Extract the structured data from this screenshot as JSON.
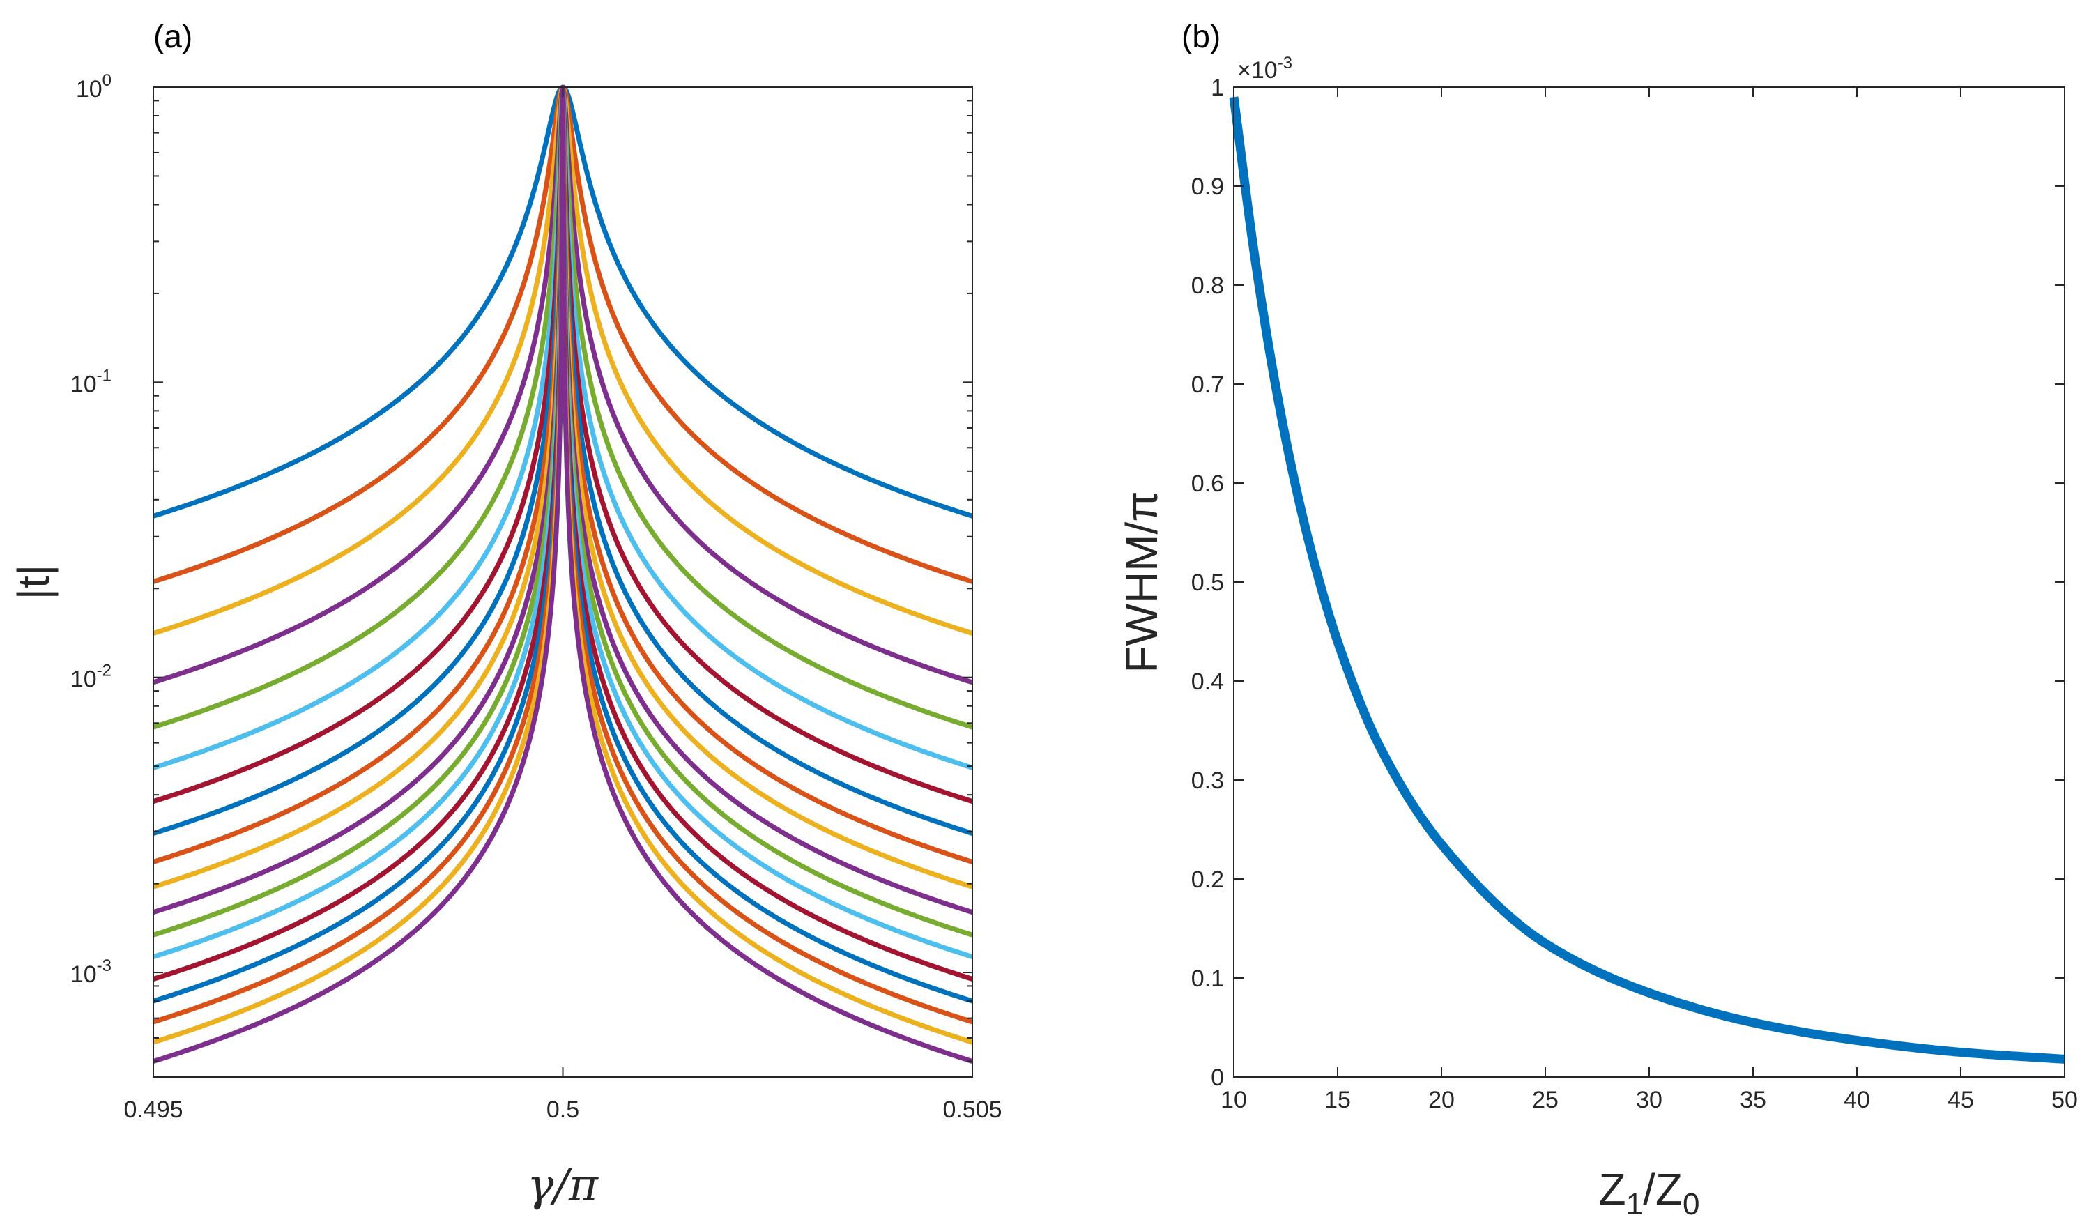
{
  "chart_data": [
    {
      "type": "line",
      "panel": "(a)",
      "xlabel": "γ/π",
      "ylabel": "|t|",
      "yscale": "log",
      "xlim": [
        0.495,
        0.505
      ],
      "ylim": [
        0.0004424,
        1
      ],
      "xticks": [
        {
          "value": 0.495,
          "label": "0.495"
        },
        {
          "value": 0.5,
          "label": "0.5"
        },
        {
          "value": 0.505,
          "label": "0.505"
        }
      ],
      "yticks": [
        {
          "value": 1,
          "base": "10",
          "exp": "0"
        },
        {
          "value": 0.1,
          "base": "10",
          "exp": "-1"
        },
        {
          "value": 0.01,
          "base": "10",
          "exp": "-2"
        },
        {
          "value": 0.001,
          "base": "10",
          "exp": "-3"
        }
      ],
      "center": 0.5,
      "model": "Lorentzian |t| = 1/sqrt(1+((x-0.5)/w)^2)",
      "series": [
        {
          "name": "curve 1",
          "edge_value": 0.0352,
          "color": "#0072BD"
        },
        {
          "name": "curve 2",
          "edge_value": 0.0211,
          "color": "#D95319"
        },
        {
          "name": "curve 3",
          "edge_value": 0.0141,
          "color": "#EDB120"
        },
        {
          "name": "curve 4",
          "edge_value": 0.00962,
          "color": "#7E2F8E"
        },
        {
          "name": "curve 5",
          "edge_value": 0.00678,
          "color": "#77AC30"
        },
        {
          "name": "curve 6",
          "edge_value": 0.00494,
          "color": "#4DBEEE"
        },
        {
          "name": "curve 7",
          "edge_value": 0.0038,
          "color": "#A2142F"
        },
        {
          "name": "curve 8",
          "edge_value": 0.00296,
          "color": "#0072BD"
        },
        {
          "name": "curve 9",
          "edge_value": 0.00237,
          "color": "#D95319"
        },
        {
          "name": "curve 10",
          "edge_value": 0.00195,
          "color": "#EDB120"
        },
        {
          "name": "curve 11",
          "edge_value": 0.0016,
          "color": "#7E2F8E"
        },
        {
          "name": "curve 12",
          "edge_value": 0.00134,
          "color": "#77AC30"
        },
        {
          "name": "curve 13",
          "edge_value": 0.00113,
          "color": "#4DBEEE"
        },
        {
          "name": "curve 14",
          "edge_value": 0.00095,
          "color": "#A2142F"
        },
        {
          "name": "curve 15",
          "edge_value": 0.0008,
          "color": "#0072BD"
        },
        {
          "name": "curve 16",
          "edge_value": 0.00068,
          "color": "#D95319"
        },
        {
          "name": "curve 17",
          "edge_value": 0.00058,
          "color": "#EDB120"
        },
        {
          "name": "curve 18",
          "edge_value": 0.0005,
          "color": "#7E2F8E"
        }
      ]
    },
    {
      "type": "line",
      "panel": "(b)",
      "xlabel_main": "Z",
      "xlabel_sub1": "1",
      "xlabel_mid": "/Z",
      "xlabel_sub2": "0",
      "ylabel": "FWHM/π",
      "multiplier": "×10",
      "multiplier_exp": "-3",
      "xlim": [
        10,
        50
      ],
      "ylim": [
        0,
        1
      ],
      "xticks": [
        10,
        15,
        20,
        25,
        30,
        35,
        40,
        45,
        50
      ],
      "yticks": [
        {
          "value": 0,
          "label": "0"
        },
        {
          "value": 0.1,
          "label": "0.1"
        },
        {
          "value": 0.2,
          "label": "0.2"
        },
        {
          "value": 0.3,
          "label": "0.3"
        },
        {
          "value": 0.4,
          "label": "0.4"
        },
        {
          "value": 0.5,
          "label": "0.5"
        },
        {
          "value": 0.6,
          "label": "0.6"
        },
        {
          "value": 0.7,
          "label": "0.7"
        },
        {
          "value": 0.8,
          "label": "0.8"
        },
        {
          "value": 0.9,
          "label": "0.9"
        },
        {
          "value": 1,
          "label": "1"
        }
      ],
      "color": "#0072BD",
      "series": [
        {
          "name": "FWHM",
          "x": [
            10,
            11,
            12,
            13,
            14,
            15,
            17,
            20,
            25,
            30,
            35,
            40,
            45,
            50
          ],
          "y": [
            0.99,
            0.83,
            0.7,
            0.595,
            0.51,
            0.44,
            0.335,
            0.235,
            0.135,
            0.085,
            0.055,
            0.037,
            0.025,
            0.018
          ]
        }
      ]
    }
  ]
}
